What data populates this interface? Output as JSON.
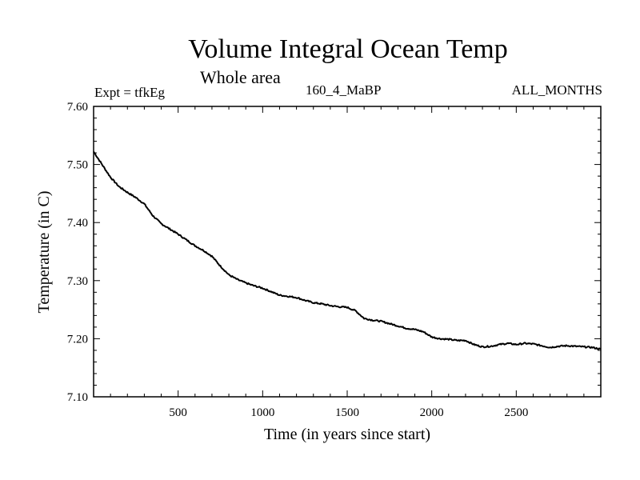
{
  "chart_data": {
    "type": "line",
    "title": "Volume Integral Ocean Temp",
    "subtitle": "Whole area",
    "annotations": {
      "experiment": "Expt = tfkEg",
      "run": "160_4_MaBP",
      "months": "ALL_MONTHS"
    },
    "xlabel": "Time (in years since start)",
    "ylabel": "Temperature (in C)",
    "xlim": [
      0,
      3000
    ],
    "ylim": [
      7.1,
      7.6
    ],
    "x_ticks": [
      500,
      1000,
      1500,
      2000,
      2500
    ],
    "x_tick_labels": [
      "500",
      "1000",
      "1500",
      "2000",
      "2500"
    ],
    "y_ticks": [
      7.1,
      7.2,
      7.3,
      7.4,
      7.5,
      7.6
    ],
    "y_tick_labels": [
      "7.10",
      "7.20",
      "7.30",
      "7.40",
      "7.50",
      "7.60"
    ],
    "grid": false,
    "series": [
      {
        "color": "#000000",
        "x": [
          0,
          50,
          100,
          150,
          200,
          250,
          300,
          350,
          400,
          450,
          500,
          550,
          600,
          650,
          700,
          750,
          800,
          850,
          900,
          950,
          1000,
          1050,
          1100,
          1150,
          1200,
          1250,
          1300,
          1350,
          1400,
          1450,
          1500,
          1550,
          1600,
          1650,
          1700,
          1750,
          1800,
          1850,
          1900,
          1950,
          2000,
          2050,
          2100,
          2150,
          2200,
          2250,
          2300,
          2350,
          2400,
          2450,
          2500,
          2550,
          2600,
          2650,
          2700,
          2750,
          2800,
          2850,
          2900,
          2950,
          3000
        ],
        "y": [
          7.522,
          7.5,
          7.478,
          7.462,
          7.452,
          7.443,
          7.432,
          7.412,
          7.398,
          7.389,
          7.38,
          7.37,
          7.36,
          7.352,
          7.342,
          7.325,
          7.31,
          7.302,
          7.296,
          7.291,
          7.287,
          7.281,
          7.275,
          7.273,
          7.271,
          7.266,
          7.262,
          7.26,
          7.257,
          7.255,
          7.254,
          7.248,
          7.235,
          7.232,
          7.23,
          7.226,
          7.222,
          7.218,
          7.216,
          7.212,
          7.203,
          7.2,
          7.199,
          7.197,
          7.197,
          7.19,
          7.186,
          7.187,
          7.19,
          7.192,
          7.19,
          7.192,
          7.191,
          7.188,
          7.185,
          7.187,
          7.188,
          7.187,
          7.186,
          7.185,
          7.182
        ]
      }
    ]
  }
}
